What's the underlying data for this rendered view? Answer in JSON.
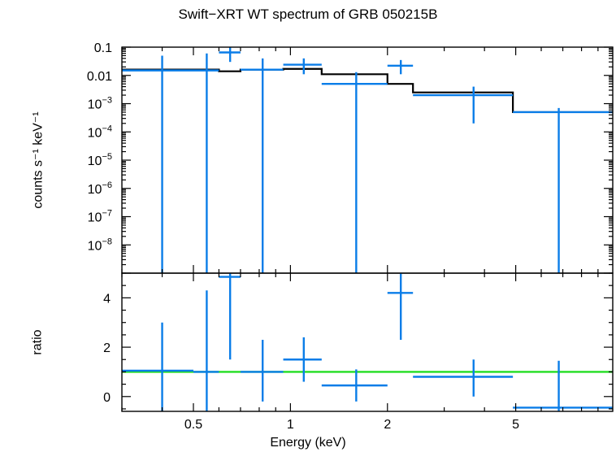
{
  "title": "Swift−XRT WT spectrum of GRB 050215B",
  "colors": {
    "data": "#0a7de8",
    "model": "#000000",
    "ratio_line": "#22dd22",
    "axes": "#000000"
  },
  "chart_data": [
    {
      "type": "scatter",
      "panel": "spectrum",
      "title": "Swift−XRT WT spectrum of GRB 050215B",
      "xlabel": "Energy (keV)",
      "ylabel": "counts s⁻¹ keV⁻¹",
      "xscale": "log",
      "yscale": "log",
      "xlim": [
        0.3,
        10
      ],
      "ylim": [
        1e-09,
        0.1
      ],
      "yticks": [
        {
          "value": 0.1,
          "label": "0.1"
        },
        {
          "value": 0.01,
          "label": "0.01"
        },
        {
          "value": 0.001,
          "base": "10",
          "exp": "−3"
        },
        {
          "value": 0.0001,
          "base": "10",
          "exp": "−4"
        },
        {
          "value": 1e-05,
          "base": "10",
          "exp": "−5"
        },
        {
          "value": 1e-06,
          "base": "10",
          "exp": "−6"
        },
        {
          "value": 1e-07,
          "base": "10",
          "exp": "−7"
        },
        {
          "value": 1e-08,
          "base": "10",
          "exp": "−8"
        }
      ],
      "series": [
        {
          "kind": "data",
          "points": [
            {
              "x": 0.4,
              "xlo": 0.3,
              "xhi": 0.5,
              "y": 0.015,
              "ylo": 1e-09,
              "yhi": 0.05
            },
            {
              "x": 0.55,
              "xlo": 0.5,
              "xhi": 0.6,
              "y": 0.015,
              "ylo": 1e-09,
              "yhi": 0.06
            },
            {
              "x": 0.65,
              "xlo": 0.6,
              "xhi": 0.7,
              "y": 0.065,
              "ylo": 0.03,
              "yhi": 0.1
            },
            {
              "x": 0.82,
              "xlo": 0.7,
              "xhi": 0.95,
              "y": 0.016,
              "ylo": 1e-09,
              "yhi": 0.04
            },
            {
              "x": 1.1,
              "xlo": 0.95,
              "xhi": 1.25,
              "y": 0.024,
              "ylo": 0.011,
              "yhi": 0.04
            },
            {
              "x": 1.6,
              "xlo": 1.25,
              "xhi": 2.0,
              "y": 0.005,
              "ylo": 1e-09,
              "yhi": 0.013
            },
            {
              "x": 2.2,
              "xlo": 2.0,
              "xhi": 2.4,
              "y": 0.022,
              "ylo": 0.011,
              "yhi": 0.035
            },
            {
              "x": 3.7,
              "xlo": 2.4,
              "xhi": 4.9,
              "y": 0.002,
              "ylo": 0.0002,
              "yhi": 0.004
            },
            {
              "x": 6.8,
              "xlo": 4.9,
              "xhi": 10.0,
              "y": 0.0005,
              "ylo": 1e-09,
              "yhi": 0.0007
            }
          ]
        },
        {
          "kind": "model",
          "steps": [
            {
              "x0": 0.3,
              "x1": 0.6,
              "y": 0.016
            },
            {
              "x0": 0.6,
              "x1": 0.7,
              "y": 0.014
            },
            {
              "x0": 0.7,
              "x1": 0.95,
              "y": 0.016
            },
            {
              "x0": 0.95,
              "x1": 1.25,
              "y": 0.017
            },
            {
              "x0": 1.25,
              "x1": 2.0,
              "y": 0.011
            },
            {
              "x0": 2.0,
              "x1": 2.4,
              "y": 0.005
            },
            {
              "x0": 2.4,
              "x1": 4.9,
              "y": 0.0025
            },
            {
              "x0": 4.9,
              "x1": 10.0,
              "y": 0.0005
            }
          ]
        }
      ]
    },
    {
      "type": "scatter",
      "panel": "ratio",
      "xlabel": "Energy (keV)",
      "ylabel": "ratio",
      "xscale": "log",
      "yscale": "linear",
      "xlim": [
        0.3,
        10
      ],
      "ylim": [
        -0.6,
        5.0
      ],
      "yticks": [
        0,
        2,
        4
      ],
      "xticks": [
        {
          "value": 0.5,
          "label": "0.5"
        },
        {
          "value": 1,
          "label": "1"
        },
        {
          "value": 2,
          "label": "2"
        },
        {
          "value": 5,
          "label": "5"
        }
      ],
      "reference_line": 1.0,
      "points": [
        {
          "x": 0.4,
          "xlo": 0.3,
          "xhi": 0.5,
          "y": 1.05,
          "ylo": -0.6,
          "yhi": 3.0
        },
        {
          "x": 0.55,
          "xlo": 0.5,
          "xhi": 0.6,
          "y": 1.0,
          "ylo": -0.6,
          "yhi": 4.3
        },
        {
          "x": 0.65,
          "xlo": 0.6,
          "xhi": 0.7,
          "y": 4.85,
          "ylo": 1.5,
          "yhi": 5.0
        },
        {
          "x": 0.82,
          "xlo": 0.7,
          "xhi": 0.95,
          "y": 1.0,
          "ylo": -0.2,
          "yhi": 2.3
        },
        {
          "x": 1.1,
          "xlo": 0.95,
          "xhi": 1.25,
          "y": 1.5,
          "ylo": 0.6,
          "yhi": 2.4
        },
        {
          "x": 1.6,
          "xlo": 1.25,
          "xhi": 2.0,
          "y": 0.45,
          "ylo": -0.2,
          "yhi": 1.1
        },
        {
          "x": 2.2,
          "xlo": 2.0,
          "xhi": 2.4,
          "y": 4.2,
          "ylo": 2.3,
          "yhi": 5.0
        },
        {
          "x": 3.7,
          "xlo": 2.4,
          "xhi": 4.9,
          "y": 0.8,
          "ylo": 0.0,
          "yhi": 1.5
        },
        {
          "x": 6.8,
          "xlo": 4.9,
          "xhi": 10.0,
          "y": -0.45,
          "ylo": -0.6,
          "yhi": 1.45
        }
      ]
    }
  ]
}
